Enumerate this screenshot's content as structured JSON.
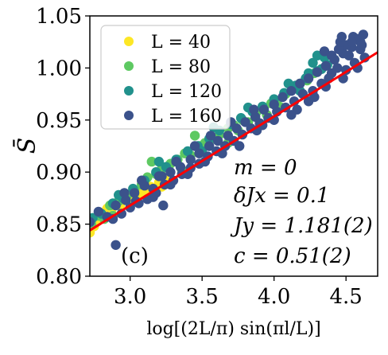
{
  "chart_data": {
    "type": "scatter",
    "xlabel": "log[(2L/π) sin(πl/L)]",
    "ylabel": "S̄",
    "xlim": [
      2.72,
      4.72
    ],
    "ylim": [
      0.8,
      1.05
    ],
    "xticks": [
      "3.0",
      "3.5",
      "4.0",
      "4.5"
    ],
    "yticks": [
      "0.80",
      "0.85",
      "0.90",
      "0.95",
      "1.00",
      "1.05"
    ],
    "grid": false,
    "legend_position": "top-left",
    "panel_label": "(c)",
    "annotations": [
      "m = 0",
      "δJx = 0.1",
      "Jy = 1.181(2)",
      "c = 0.51(2)"
    ],
    "series": [
      {
        "name": "L = 40",
        "color": "#fde725",
        "points": [
          [
            2.72,
            0.842
          ],
          [
            2.75,
            0.848
          ],
          [
            2.77,
            0.853
          ],
          [
            2.79,
            0.86
          ],
          [
            2.81,
            0.857
          ],
          [
            2.84,
            0.865
          ],
          [
            2.87,
            0.862
          ],
          [
            2.9,
            0.87
          ],
          [
            2.93,
            0.868
          ],
          [
            2.96,
            0.874
          ],
          [
            2.99,
            0.872
          ],
          [
            3.02,
            0.878
          ],
          [
            3.05,
            0.876
          ],
          [
            3.08,
            0.882
          ],
          [
            3.11,
            0.879
          ],
          [
            3.14,
            0.886
          ],
          [
            3.17,
            0.883
          ],
          [
            3.2,
            0.89
          ],
          [
            3.22,
            0.886
          ],
          [
            3.24,
            0.893
          ]
        ]
      },
      {
        "name": "L = 80",
        "color": "#5ec962",
        "points": [
          [
            2.73,
            0.85
          ],
          [
            2.78,
            0.858
          ],
          [
            2.82,
            0.855
          ],
          [
            2.86,
            0.868
          ],
          [
            2.92,
            0.872
          ],
          [
            2.98,
            0.878
          ],
          [
            3.03,
            0.883
          ],
          [
            3.08,
            0.888
          ],
          [
            3.12,
            0.895
          ],
          [
            3.18,
            0.898
          ],
          [
            3.22,
            0.903
          ],
          [
            3.28,
            0.908
          ],
          [
            3.33,
            0.912
          ],
          [
            3.38,
            0.918
          ],
          [
            3.42,
            0.916
          ],
          [
            3.48,
            0.925
          ],
          [
            3.52,
            0.928
          ],
          [
            3.58,
            0.932
          ],
          [
            3.62,
            0.936
          ],
          [
            3.68,
            0.942
          ],
          [
            3.72,
            0.945
          ],
          [
            3.78,
            0.95
          ],
          [
            3.82,
            0.948
          ],
          [
            3.88,
            0.958
          ],
          [
            3.93,
            0.962
          ],
          [
            3.98,
            0.966
          ],
          [
            4.02,
            0.968
          ],
          [
            4.08,
            0.975
          ],
          [
            4.13,
            0.98
          ],
          [
            4.18,
            0.985
          ],
          [
            4.23,
            0.988
          ],
          [
            4.28,
            0.995
          ],
          [
            3.15,
            0.91
          ],
          [
            3.45,
            0.935
          ],
          [
            3.75,
            0.94
          ],
          [
            3.95,
            0.955
          ],
          [
            3.36,
            0.902
          ],
          [
            3.68,
            0.928
          ],
          [
            4.05,
            0.962
          ],
          [
            2.88,
            0.858
          ]
        ]
      },
      {
        "name": "L = 120",
        "color": "#21918c",
        "points": [
          [
            2.74,
            0.856
          ],
          [
            2.8,
            0.86
          ],
          [
            2.88,
            0.87
          ],
          [
            2.95,
            0.875
          ],
          [
            3.02,
            0.884
          ],
          [
            3.1,
            0.892
          ],
          [
            3.18,
            0.9
          ],
          [
            3.25,
            0.905
          ],
          [
            3.32,
            0.912
          ],
          [
            3.4,
            0.92
          ],
          [
            3.47,
            0.925
          ],
          [
            3.55,
            0.932
          ],
          [
            3.62,
            0.94
          ],
          [
            3.7,
            0.946
          ],
          [
            3.77,
            0.952
          ],
          [
            3.85,
            0.958
          ],
          [
            3.92,
            0.963
          ],
          [
            4.0,
            0.97
          ],
          [
            4.07,
            0.976
          ],
          [
            4.15,
            0.983
          ],
          [
            4.22,
            0.99
          ],
          [
            4.3,
            0.997
          ],
          [
            4.37,
            1.003
          ],
          [
            4.42,
            1.008
          ],
          [
            4.27,
            1.005
          ],
          [
            4.33,
            0.999
          ],
          [
            4.24,
            0.995
          ],
          [
            4.3,
            1.012
          ],
          [
            3.58,
            0.943
          ],
          [
            3.82,
            0.962
          ],
          [
            4.1,
            0.985
          ],
          [
            2.92,
            0.878
          ],
          [
            3.2,
            0.91
          ],
          [
            3.5,
            0.92
          ],
          [
            4.18,
            0.978
          ],
          [
            4.35,
            1.01
          ]
        ]
      },
      {
        "name": "L = 160",
        "color": "#3b528b",
        "points": [
          [
            2.72,
            0.852
          ],
          [
            2.78,
            0.862
          ],
          [
            2.84,
            0.857
          ],
          [
            2.9,
            0.868
          ],
          [
            2.97,
            0.873
          ],
          [
            3.03,
            0.88
          ],
          [
            3.1,
            0.887
          ],
          [
            3.16,
            0.884
          ],
          [
            3.22,
            0.896
          ],
          [
            3.28,
            0.9
          ],
          [
            3.35,
            0.905
          ],
          [
            3.42,
            0.912
          ],
          [
            3.48,
            0.918
          ],
          [
            3.55,
            0.925
          ],
          [
            3.61,
            0.93
          ],
          [
            3.68,
            0.935
          ],
          [
            3.74,
            0.942
          ],
          [
            3.8,
            0.948
          ],
          [
            3.87,
            0.953
          ],
          [
            3.93,
            0.96
          ],
          [
            4.0,
            0.965
          ],
          [
            4.06,
            0.972
          ],
          [
            4.12,
            0.978
          ],
          [
            4.18,
            0.985
          ],
          [
            4.24,
            0.99
          ],
          [
            4.3,
            0.996
          ],
          [
            4.36,
            1.002
          ],
          [
            4.42,
            1.008
          ],
          [
            4.48,
            1.014
          ],
          [
            4.54,
            1.02
          ],
          [
            4.6,
            1.025
          ],
          [
            4.62,
            1.032
          ],
          [
            4.58,
            1.028
          ],
          [
            4.55,
            1.03
          ],
          [
            4.5,
            1.022
          ],
          [
            4.45,
            1.018
          ],
          [
            4.4,
            1.012
          ],
          [
            4.35,
            1.016
          ],
          [
            4.44,
            1.0
          ],
          [
            4.5,
            0.998
          ],
          [
            4.38,
            0.99
          ],
          [
            4.33,
            0.985
          ],
          [
            4.27,
            0.978
          ],
          [
            4.2,
            0.975
          ],
          [
            4.14,
            0.968
          ],
          [
            4.08,
            0.962
          ],
          [
            4.02,
            0.958
          ],
          [
            3.96,
            0.952
          ],
          [
            3.9,
            0.947
          ],
          [
            3.84,
            0.942
          ],
          [
            3.78,
            0.936
          ],
          [
            3.72,
            0.93
          ],
          [
            3.66,
            0.925
          ],
          [
            3.6,
            0.92
          ],
          [
            3.54,
            0.915
          ],
          [
            3.48,
            0.908
          ],
          [
            3.42,
            0.904
          ],
          [
            3.36,
            0.898
          ],
          [
            3.3,
            0.892
          ],
          [
            3.24,
            0.888
          ],
          [
            3.18,
            0.88
          ],
          [
            3.12,
            0.874
          ],
          [
            3.06,
            0.87
          ],
          [
            3.0,
            0.866
          ],
          [
            2.94,
            0.86
          ],
          [
            2.88,
            0.855
          ],
          [
            3.23,
            0.868
          ],
          [
            2.9,
            0.83
          ],
          [
            4.46,
            1.025
          ],
          [
            4.52,
            1.012
          ],
          [
            4.56,
            1.005
          ],
          [
            4.6,
            1.018
          ],
          [
            4.63,
            1.01
          ],
          [
            4.58,
            1.0
          ],
          [
            4.4,
            0.995
          ],
          [
            4.28,
            0.972
          ],
          [
            4.16,
            0.96
          ],
          [
            3.92,
            0.945
          ],
          [
            3.86,
            0.96
          ],
          [
            3.7,
            0.948
          ],
          [
            3.56,
            0.935
          ],
          [
            3.45,
            0.925
          ],
          [
            3.32,
            0.91
          ],
          [
            3.2,
            0.896
          ],
          [
            3.08,
            0.892
          ],
          [
            2.96,
            0.88
          ],
          [
            4.47,
            1.03
          ],
          [
            4.54,
            1.025
          ],
          [
            4.61,
            1.022
          ],
          [
            4.48,
            0.99
          ],
          [
            4.36,
            0.982
          ],
          [
            4.24,
            0.968
          ],
          [
            4.12,
            0.955
          ],
          [
            4.0,
            0.95
          ],
          [
            3.88,
            0.94
          ],
          [
            3.76,
            0.925
          ],
          [
            3.64,
            0.918
          ],
          [
            3.52,
            0.91
          ],
          [
            3.4,
            0.898
          ],
          [
            3.28,
            0.888
          ],
          [
            3.16,
            0.876
          ],
          [
            3.04,
            0.872
          ]
        ]
      }
    ],
    "fit_line": {
      "color": "#ff0000",
      "x": [
        2.72,
        4.72
      ],
      "y": [
        0.844,
        1.015
      ]
    }
  }
}
